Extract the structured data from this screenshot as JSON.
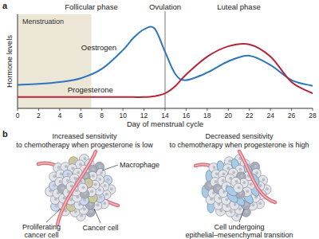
{
  "figure_labels": [
    "a",
    "b"
  ],
  "chart_data": {
    "type": "line",
    "x_label": "Day of menstrual cycle",
    "y_label": "Hormone levels",
    "x": [
      0,
      2,
      4,
      6,
      8,
      10,
      11,
      12,
      13,
      14,
      15,
      16,
      18,
      20,
      22,
      24,
      26,
      28
    ],
    "series": [
      {
        "name": "Oestrogen",
        "color": "#2c76c0",
        "values": [
          25,
          26,
          28,
          32,
          42,
          62,
          75,
          84,
          85,
          60,
          36,
          30,
          38,
          50,
          56,
          46,
          30,
          24
        ]
      },
      {
        "name": "Progesterone",
        "color": "#b5253a",
        "values": [
          12,
          12,
          12,
          12,
          12,
          12,
          12,
          12,
          13,
          16,
          24,
          36,
          55,
          66,
          68,
          55,
          28,
          16
        ]
      }
    ],
    "xlim": [
      0,
      28
    ],
    "ylim": [
      0,
      100
    ],
    "xticks": [
      0,
      2,
      4,
      6,
      8,
      10,
      12,
      14,
      16,
      18,
      20,
      22,
      24,
      26,
      28
    ],
    "yticks": [],
    "tick_labels": "x",
    "grid": false,
    "annotations": [
      {
        "text": "Menstruation",
        "from": 0,
        "to": 7,
        "color": "#ece6d6"
      },
      {
        "text": "Follicular phase",
        "from": 0,
        "to": 14
      },
      {
        "text": "Ovulation",
        "at": 14
      },
      {
        "text": "Luteal phase",
        "from": 14,
        "to": 28
      }
    ]
  },
  "illustration": {
    "left": {
      "heading": [
        "Increased sensitivity",
        "to chemotherapy when progesterone is low"
      ],
      "macrophage": "Macrophage",
      "cancer_cell": "Cancer cell",
      "proliferating": [
        "Proliferating",
        "cancer cell"
      ]
    },
    "right": {
      "heading": [
        "Decreased sensitivity",
        "to chemotherapy when progesterone is high"
      ],
      "emt": [
        "Cell undergoing",
        "epithelial–mesenchymal transition"
      ]
    }
  }
}
